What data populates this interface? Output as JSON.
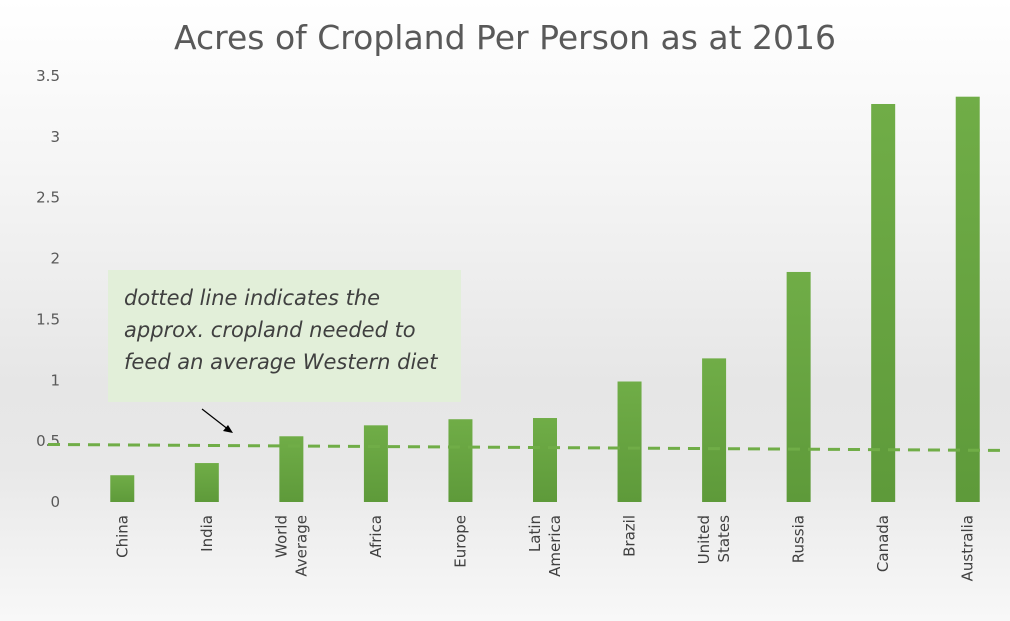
{
  "chart_data": {
    "type": "bar",
    "title": "Acres of Cropland Per Person as at 2016",
    "xlabel": "",
    "ylabel": "",
    "categories": [
      [
        "China"
      ],
      [
        "India"
      ],
      [
        "World",
        "Average"
      ],
      [
        "Africa"
      ],
      [
        "Europe"
      ],
      [
        "Latin",
        "America"
      ],
      [
        "Brazil"
      ],
      [
        "United",
        "States"
      ],
      [
        "Russia"
      ],
      [
        "Canada"
      ],
      [
        "Australia"
      ]
    ],
    "values": [
      0.22,
      0.32,
      0.54,
      0.63,
      0.68,
      0.69,
      0.99,
      1.18,
      1.89,
      3.27,
      3.33
    ],
    "ylim": [
      0,
      3.5
    ],
    "yticks": [
      "0",
      "0.5",
      "1",
      "1.5",
      "2",
      "2.5",
      "3",
      "3.5"
    ],
    "grid": false,
    "reference_line": {
      "value": 0.44,
      "style": "dashed"
    },
    "annotation": {
      "lines": [
        "dotted line indicates the",
        "approx. cropland needed to",
        "feed an average Western diet"
      ]
    },
    "colors": {
      "bar_top": "#70ad47",
      "bar_bottom": "#5e9a3a",
      "reference_line": "#70ad47",
      "text": "#595959"
    }
  }
}
